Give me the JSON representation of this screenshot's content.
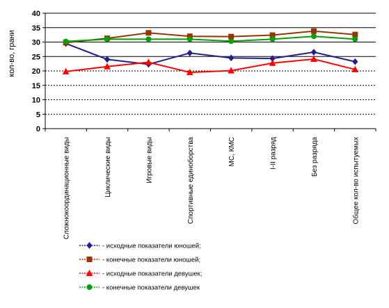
{
  "chart_data": {
    "type": "line",
    "ylabel": "кол-во, грани",
    "ylim": [
      0,
      40
    ],
    "yticks": [
      0,
      5,
      10,
      15,
      20,
      25,
      30,
      35,
      40
    ],
    "gridlines": {
      "solid": [
        25,
        30,
        35,
        40
      ],
      "dotted": [
        5,
        10,
        15,
        20
      ]
    },
    "categories": [
      "Сложнокоординационные виды",
      "Циклические виды",
      "Игровые виды",
      "Спортивные единоборства",
      "МС, КМС",
      "I-II разряд",
      "Без разряда",
      "Общее кол-во испытуемых"
    ],
    "series": [
      {
        "name": "- исходные показатели юношей;",
        "color": "#1f1f8f",
        "marker": "diamond",
        "values": [
          29.5,
          24.0,
          22.3,
          26.2,
          24.5,
          24.3,
          26.5,
          23.2
        ]
      },
      {
        "name": "- конечные показатели юношей;",
        "color": "#993300",
        "marker": "square",
        "values": [
          29.8,
          31.3,
          33.2,
          32.0,
          31.9,
          32.4,
          33.8,
          32.6
        ]
      },
      {
        "name": "- исходные показатели девушек;",
        "color": "#ff0000",
        "marker": "triangle",
        "values": [
          19.8,
          21.5,
          23.0,
          19.5,
          20.1,
          22.7,
          24.1,
          20.5
        ]
      },
      {
        "name": "- конечные показатели девушек",
        "color": "#00a000",
        "marker": "circle",
        "values": [
          30.2,
          31.0,
          31.0,
          31.0,
          30.3,
          31.0,
          32.0,
          31.0
        ]
      }
    ],
    "legend_position": "bottom"
  }
}
